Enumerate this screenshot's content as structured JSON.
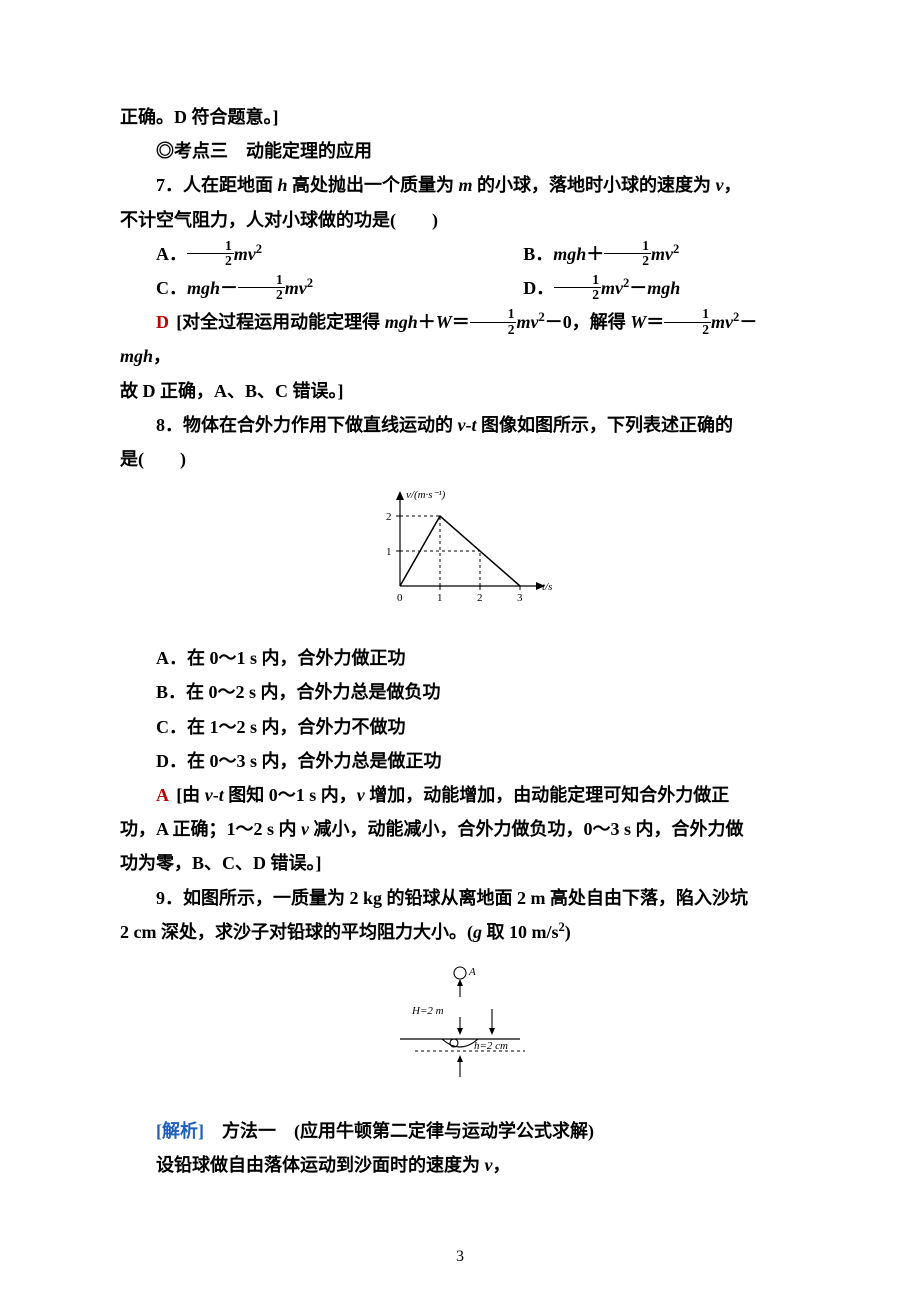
{
  "line_top": "正确。D 符合题意。]",
  "section_heading": "◎考点三　动能定理的应用",
  "q7": {
    "stem1": "7．人在距地面 <span class='math'>h</span> 高处抛出一个质量为 <span class='math'>m</span> 的小球，落地时小球的速度为 <span class='math'>v</span>，",
    "stem2": "不计空气阻力，人对小球做的功是(　　)",
    "A": "A．<span class='frac'><span class='n'>1</span><span class='d'>2</span></span><span class='math'>mv</span><sup>2</sup>",
    "B": "B．<span class='math'>mgh</span>＋<span class='frac'><span class='n'>1</span><span class='d'>2</span></span><span class='math'>mv</span><sup>2</sup>",
    "C": "C．<span class='math'>mgh</span>－<span class='frac'><span class='n'>1</span><span class='d'>2</span></span><span class='math'>mv</span><sup>2</sup>",
    "D": "D．<span class='frac'><span class='n'>1</span><span class='d'>2</span></span><span class='math'>mv</span><sup>2</sup>－<span class='math'>mgh</span>",
    "ans_letter": "D",
    "sol1": "[对全过程运用动能定理得 <span class='math'>mgh</span>＋<span class='math'>W</span>＝<span class='frac'><span class='n'>1</span><span class='d'>2</span></span><span class='math'>mv</span><sup>2</sup>－0，解得 <span class='math'>W</span>＝<span class='frac'><span class='n'>1</span><span class='d'>2</span></span><span class='math'>mv</span><sup>2</sup>－<span class='math'>mgh</span>，",
    "sol2": "故 D 正确，A、B、C 错误。]"
  },
  "q8": {
    "stem1": "8．物体在合外力作用下做直线运动的 <span class='math'>v</span>-<span class='math'>t</span> 图像如图所示，下列表述正确的",
    "stem2": "是(　　)",
    "A": "A．在 0～1 s 内，合外力做正功",
    "B": "B．在 0～2 s 内，合外力总是做负功",
    "C": "C．在 1～2 s 内，合外力不做功",
    "D": "D．在 0～3 s 内，合外力总是做正功",
    "ans_letter": "A",
    "sol1": "[由 <span class='math'>v</span>-<span class='math'>t</span> 图知 0～1 s 内，<span class='math'>v</span> 增加，动能增加，由动能定理可知合外力做正",
    "sol2": "功，A 正确；1～2 s 内 <span class='math'>v</span> 减小，动能减小，合外力做负功，0～3 s 内，合外力做",
    "sol3": "功为零，B、C、D 错误。]",
    "chart": {
      "type": "line",
      "x_label": "t/s",
      "y_label": "v/(m·s⁻¹)",
      "x_ticks": [
        0,
        1,
        2,
        3
      ],
      "y_ticks": [
        0,
        1,
        2
      ],
      "points": [
        [
          0,
          0
        ],
        [
          1,
          2
        ],
        [
          3,
          0
        ]
      ],
      "colors": {
        "axis": "#000000",
        "line": "#000000",
        "dash": "#000000",
        "bg": "#ffffff"
      },
      "stroke_width": 1.2,
      "font_size": 11
    }
  },
  "q9": {
    "stem1": "9．如图所示，一质量为 2 kg 的铅球从离地面 2 m 高处自由下落，陷入沙坑",
    "stem2": "2 cm 深处，求沙子对铅球的平均阻力大小。(<span class='math'>g</span> 取 10 m/s<sup>2</sup>)",
    "soln_label": "[解析]",
    "sol1": "方法一　(应用牛顿第二定律与运动学公式求解)",
    "sol2": "设铅球做自由落体运动到沙面时的速度为 <span class='math'>v</span>，",
    "diagram": {
      "H_label": "H=2 m",
      "h_label": "h=2 cm",
      "A_label": "A",
      "colors": {
        "line": "#000000",
        "bg": "#ffffff"
      },
      "stroke_width": 1.1,
      "font_size": 11
    }
  },
  "page_number": "3"
}
